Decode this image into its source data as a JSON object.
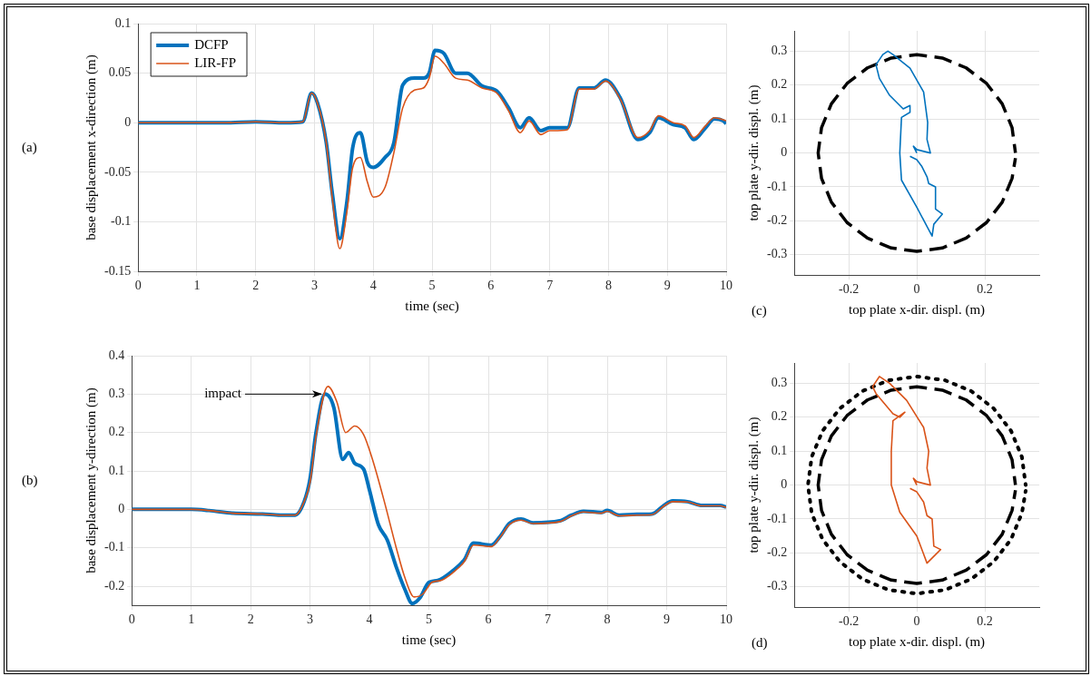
{
  "chart_data": [
    {
      "type": "line",
      "xlabel": "time (sec)",
      "ylabel": "base displacement x-direction (m)",
      "xlim": [
        0,
        10
      ],
      "xticks": [
        0,
        1,
        2,
        3,
        4,
        5,
        6,
        7,
        8,
        9,
        10
      ],
      "ylim": [
        -0.15,
        0.1
      ],
      "yticks": [
        -0.15,
        -0.1,
        -0.05,
        0,
        0.05,
        0.1
      ],
      "grid": true,
      "legend": "top left",
      "marker": "none",
      "line_style": "solid",
      "annotations": [
        "(a)"
      ],
      "series": [
        {
          "name": "DCFP",
          "color": "#0072bd",
          "x": [
            0,
            1,
            1.5,
            2,
            2.5,
            2.8,
            2.95,
            3.05,
            3.2,
            3.3,
            3.43,
            3.55,
            3.65,
            3.78,
            3.9,
            4,
            4.2,
            4.35,
            4.5,
            4.7,
            4.85,
            4.95,
            5.05,
            5.2,
            5.4,
            5.6,
            5.85,
            6.1,
            6.3,
            6.5,
            6.65,
            6.85,
            7,
            7.3,
            7.5,
            7.75,
            7.95,
            8.2,
            8.5,
            8.7,
            8.85,
            9.1,
            9.3,
            9.45,
            9.65,
            9.8,
            9.95,
            10
          ],
          "values": [
            0,
            0,
            0,
            0.001,
            0,
            0.001,
            0.03,
            0.02,
            -0.02,
            -0.07,
            -0.117,
            -0.08,
            -0.025,
            -0.01,
            -0.04,
            -0.045,
            -0.035,
            -0.02,
            0.038,
            0.045,
            0.045,
            0.05,
            0.073,
            0.07,
            0.05,
            0.05,
            0.037,
            0.032,
            0.015,
            -0.005,
            0.005,
            -0.008,
            -0.005,
            -0.005,
            0.035,
            0.035,
            0.043,
            0.025,
            -0.017,
            -0.01,
            0.005,
            -0.002,
            -0.005,
            -0.017,
            -0.005,
            0.004,
            0.002,
            -0.001
          ]
        },
        {
          "name": "LIR-FP",
          "color": "#d95319",
          "x": [
            0,
            1,
            1.5,
            2,
            2.5,
            2.8,
            2.95,
            3.05,
            3.2,
            3.3,
            3.43,
            3.55,
            3.65,
            3.78,
            3.9,
            4,
            4.2,
            4.35,
            4.5,
            4.7,
            4.85,
            4.95,
            5.05,
            5.2,
            5.4,
            5.6,
            5.85,
            6.1,
            6.3,
            6.5,
            6.65,
            6.85,
            7,
            7.3,
            7.5,
            7.75,
            7.95,
            8.2,
            8.5,
            8.7,
            8.85,
            9.1,
            9.3,
            9.45,
            9.65,
            9.8,
            9.95,
            10
          ],
          "values": [
            0,
            0,
            0,
            0.001,
            0,
            0.001,
            0.03,
            0.02,
            -0.02,
            -0.075,
            -0.127,
            -0.09,
            -0.045,
            -0.035,
            -0.06,
            -0.075,
            -0.065,
            -0.03,
            0.015,
            0.033,
            0.035,
            0.045,
            0.067,
            0.06,
            0.045,
            0.043,
            0.035,
            0.03,
            0.012,
            -0.01,
            0.002,
            -0.012,
            -0.008,
            -0.007,
            0.034,
            0.034,
            0.042,
            0.024,
            -0.015,
            -0.008,
            0.007,
            0,
            -0.003,
            -0.015,
            -0.003,
            0.005,
            0.003,
            0.002
          ]
        }
      ]
    },
    {
      "type": "line",
      "xlabel": "time (sec)",
      "ylabel": "base displacement y-direction (m)",
      "xlim": [
        0,
        10
      ],
      "xticks": [
        0,
        1,
        2,
        3,
        4,
        5,
        6,
        7,
        8,
        9,
        10
      ],
      "ylim": [
        -0.25,
        0.4
      ],
      "yticks": [
        -0.2,
        -0.1,
        0,
        0.1,
        0.2,
        0.3,
        0.4
      ],
      "grid": true,
      "marker": "none",
      "line_style": "solid",
      "annotations": [
        "(b)",
        {
          "text": "impact",
          "x": 3.25,
          "y": 0.3
        }
      ],
      "series": [
        {
          "color": "#0072bd",
          "x": [
            0,
            1,
            1.3,
            1.7,
            2.2,
            2.5,
            2.75,
            2.9,
            3,
            3.1,
            3.25,
            3.4,
            3.55,
            3.65,
            3.75,
            3.9,
            4,
            4.15,
            4.3,
            4.45,
            4.6,
            4.72,
            4.85,
            5,
            5.15,
            5.4,
            5.6,
            5.75,
            6.05,
            6.2,
            6.35,
            6.55,
            6.75,
            7.2,
            7.4,
            7.6,
            7.9,
            8,
            8.2,
            8.5,
            8.75,
            8.95,
            9.1,
            9.35,
            9.6,
            9.9,
            10
          ],
          "values": [
            0,
            0,
            -0.003,
            -0.01,
            -0.012,
            -0.015,
            -0.015,
            0.02,
            0.08,
            0.2,
            0.3,
            0.265,
            0.13,
            0.148,
            0.12,
            0.105,
            0.05,
            -0.04,
            -0.08,
            -0.15,
            -0.21,
            -0.245,
            -0.23,
            -0.19,
            -0.185,
            -0.16,
            -0.13,
            -0.088,
            -0.093,
            -0.07,
            -0.037,
            -0.025,
            -0.035,
            -0.03,
            -0.015,
            -0.005,
            -0.008,
            -0.003,
            -0.015,
            -0.013,
            -0.012,
            0.01,
            0.022,
            0.02,
            0.01,
            0.01,
            0.006
          ]
        },
        {
          "color": "#d95319",
          "x": [
            0,
            1,
            1.3,
            1.7,
            2.2,
            2.5,
            2.75,
            2.9,
            3,
            3.1,
            3.3,
            3.45,
            3.6,
            3.75,
            3.9,
            4.05,
            4.25,
            4.45,
            4.6,
            4.75,
            4.9,
            5.05,
            5.2,
            5.4,
            5.6,
            5.75,
            6.05,
            6.2,
            6.35,
            6.55,
            6.75,
            7.2,
            7.4,
            7.6,
            7.9,
            8,
            8.2,
            8.5,
            8.75,
            8.95,
            9.1,
            9.35,
            9.6,
            9.9,
            10
          ],
          "values": [
            0,
            0,
            -0.003,
            -0.01,
            -0.012,
            -0.015,
            -0.015,
            0.02,
            0.07,
            0.19,
            0.32,
            0.28,
            0.2,
            0.217,
            0.195,
            0.13,
            0.02,
            -0.1,
            -0.18,
            -0.228,
            -0.22,
            -0.19,
            -0.185,
            -0.165,
            -0.135,
            -0.093,
            -0.097,
            -0.072,
            -0.04,
            -0.028,
            -0.037,
            -0.032,
            -0.017,
            -0.007,
            -0.01,
            -0.005,
            -0.017,
            -0.015,
            -0.014,
            0.008,
            0.02,
            0.019,
            0.009,
            0.009,
            0.005
          ]
        }
      ]
    },
    {
      "type": "line",
      "xlabel": "top plate x-dir. displ. (m)",
      "ylabel": "top plate y-dir. displ. (m)",
      "xlim": [
        -0.36,
        0.36
      ],
      "xticks": [
        -0.2,
        0,
        0.2
      ],
      "ylim": [
        -0.36,
        0.36
      ],
      "yticks": [
        -0.3,
        -0.2,
        -0.1,
        0,
        0.1,
        0.2,
        0.3
      ],
      "grid": true,
      "marker": "none",
      "annotations": [
        "(c)"
      ],
      "series": [
        {
          "color": "#000000",
          "line_style": "dashed",
          "x": [
            0.29,
            0.28,
            0.251,
            0.205,
            0.145,
            0.075,
            0,
            -0.075,
            -0.145,
            -0.205,
            -0.251,
            -0.28,
            -0.29,
            -0.28,
            -0.251,
            -0.205,
            -0.145,
            -0.075,
            0,
            0.075,
            0.145,
            0.205,
            0.251,
            0.28,
            0.29
          ],
          "values": [
            0,
            0.075,
            0.145,
            0.205,
            0.251,
            0.28,
            0.29,
            0.28,
            0.251,
            0.205,
            0.145,
            0.075,
            0,
            -0.075,
            -0.145,
            -0.205,
            -0.251,
            -0.28,
            -0.29,
            -0.28,
            -0.251,
            -0.205,
            -0.145,
            -0.075,
            -0.015
          ]
        },
        {
          "color": "#0072bd",
          "line_style": "solid",
          "x": [
            0,
            -0.01,
            0,
            0.04,
            0.03,
            0.032,
            0.02,
            -0.02,
            -0.07,
            -0.085,
            -0.1,
            -0.12,
            -0.11,
            -0.08,
            -0.04,
            -0.02,
            -0.02,
            -0.045,
            -0.05,
            -0.045,
            0,
            0.045,
            0.05,
            0.075,
            0.055,
            0.055,
            0.035,
            0.03,
            0.015,
            0,
            -0.02
          ],
          "values": [
            0,
            0.02,
            0.01,
            0,
            0.04,
            0.09,
            0.18,
            0.25,
            0.29,
            0.3,
            0.29,
            0.26,
            0.22,
            0.17,
            0.13,
            0.14,
            0.12,
            0.105,
            0,
            -0.08,
            -0.16,
            -0.245,
            -0.21,
            -0.18,
            -0.165,
            -0.1,
            -0.09,
            -0.07,
            -0.04,
            -0.02,
            -0.01
          ]
        }
      ]
    },
    {
      "type": "line",
      "xlabel": "top plate x-dir. displ. (m)",
      "ylabel": "top plate y-dir. displ. (m)",
      "xlim": [
        -0.36,
        0.36
      ],
      "xticks": [
        -0.2,
        0,
        0.2
      ],
      "ylim": [
        -0.36,
        0.36
      ],
      "yticks": [
        -0.3,
        -0.2,
        -0.1,
        0,
        0.1,
        0.2,
        0.3
      ],
      "grid": true,
      "marker": "none",
      "annotations": [
        "(d)"
      ],
      "series": [
        {
          "color": "#000000",
          "line_style": "dotted",
          "x": [
            0.32,
            0.309,
            0.277,
            0.226,
            0.16,
            0.083,
            0,
            -0.083,
            -0.16,
            -0.226,
            -0.277,
            -0.309,
            -0.32,
            -0.309,
            -0.277,
            -0.226,
            -0.16,
            -0.083,
            0,
            0.083,
            0.16,
            0.226,
            0.277,
            0.309,
            0.32
          ],
          "values": [
            0,
            0.083,
            0.16,
            0.226,
            0.277,
            0.309,
            0.32,
            0.309,
            0.277,
            0.226,
            0.16,
            0.083,
            0,
            -0.083,
            -0.16,
            -0.226,
            -0.277,
            -0.309,
            -0.32,
            -0.309,
            -0.277,
            -0.226,
            -0.16,
            -0.083,
            -0.017
          ]
        },
        {
          "color": "#000000",
          "line_style": "dashed",
          "x": [
            0.29,
            0.28,
            0.251,
            0.205,
            0.145,
            0.075,
            0,
            -0.075,
            -0.145,
            -0.205,
            -0.251,
            -0.28,
            -0.29,
            -0.28,
            -0.251,
            -0.205,
            -0.145,
            -0.075,
            0,
            0.075,
            0.145,
            0.205,
            0.251,
            0.28,
            0.29
          ],
          "values": [
            0,
            0.075,
            0.145,
            0.205,
            0.251,
            0.28,
            0.29,
            0.28,
            0.251,
            0.205,
            0.145,
            0.075,
            0,
            -0.075,
            -0.145,
            -0.205,
            -0.251,
            -0.28,
            -0.29,
            -0.28,
            -0.251,
            -0.205,
            -0.145,
            -0.075,
            -0.015
          ]
        },
        {
          "color": "#d95319",
          "line_style": "solid",
          "x": [
            0,
            -0.01,
            0,
            0.04,
            0.03,
            0.035,
            0.02,
            -0.03,
            -0.08,
            -0.11,
            -0.13,
            -0.12,
            -0.07,
            -0.05,
            -0.035,
            -0.07,
            -0.075,
            -0.075,
            -0.05,
            0,
            0.03,
            0.07,
            0.05,
            0.045,
            0.03,
            0.02,
            0,
            -0.02
          ],
          "values": [
            0,
            0.02,
            0.01,
            0,
            0.05,
            0.1,
            0.17,
            0.25,
            0.3,
            0.32,
            0.29,
            0.27,
            0.21,
            0.2,
            0.215,
            0.19,
            0.1,
            0,
            -0.08,
            -0.15,
            -0.23,
            -0.19,
            -0.18,
            -0.1,
            -0.09,
            -0.05,
            -0.02,
            -0.01
          ]
        }
      ]
    }
  ]
}
